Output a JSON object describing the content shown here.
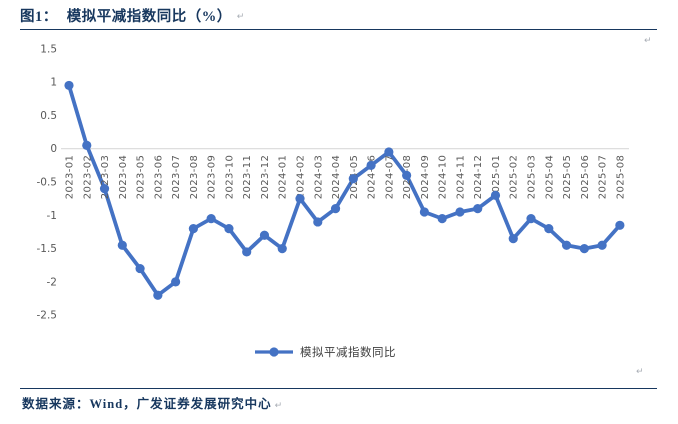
{
  "header": {
    "figure_label": "图1：",
    "title": "模拟平减指数同比（%）"
  },
  "marks": {
    "return_mark": "↵"
  },
  "chart_data": {
    "type": "line",
    "title": "图1：模拟平减指数同比（%）",
    "categories": [
      "2023-01",
      "2023-02",
      "2023-03",
      "2023-04",
      "2023-05",
      "2023-06",
      "2023-07",
      "2023-08",
      "2023-09",
      "2023-10",
      "2023-11",
      "2023-12",
      "2024-01",
      "2024-02",
      "2024-03",
      "2024-04",
      "2024-05",
      "2024-06",
      "2024-07",
      "2024-08",
      "2024-09",
      "2024-10",
      "2024-11",
      "2024-12",
      "2025-01",
      "2025-02",
      "2025-03",
      "2025-04",
      "2025-05",
      "2025-06",
      "2025-07",
      "2025-08"
    ],
    "series": [
      {
        "name": "模拟平减指数同比",
        "values": [
          0.95,
          0.05,
          -0.6,
          -1.45,
          -1.8,
          -2.2,
          -2.0,
          -1.2,
          -1.05,
          -1.2,
          -1.55,
          -1.3,
          -1.5,
          -0.75,
          -1.1,
          -0.9,
          -0.45,
          -0.25,
          -0.05,
          -0.4,
          -0.95,
          -1.05,
          -0.95,
          -0.9,
          -0.7,
          -1.35,
          -1.05,
          -1.2,
          -1.45,
          -1.5,
          -1.45,
          -1.15
        ]
      }
    ],
    "ylim": [
      -2.5,
      1.5
    ],
    "yticks": [
      1.5,
      1,
      0.5,
      0,
      -0.5,
      -1,
      -1.5,
      -2,
      -2.5
    ],
    "ytick_labels": [
      "1.5",
      "1",
      "0.5",
      "0",
      "-0.5",
      "-1",
      "-1.5",
      "-2",
      "-2.5"
    ],
    "xlabel": "",
    "ylabel": "",
    "grid": "zero-line-only",
    "legend_position": "bottom-center",
    "line_color": "#4472C4",
    "axis_label_color": "#595959",
    "zero_line_color": "#D9D9D9",
    "title_color": "#17375E"
  },
  "footer": {
    "source_text": "数据来源：Wind，广发证券发展研究中心"
  }
}
